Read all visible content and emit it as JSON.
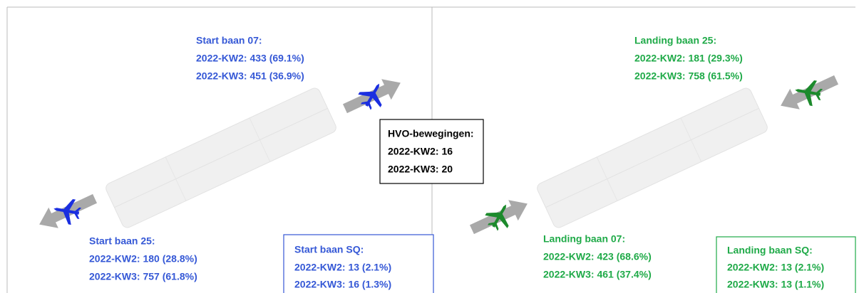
{
  "left": {
    "start_07": {
      "title": "Start baan 07:",
      "lines": [
        "2022-KW2: 433 (69.1%)",
        "2022-KW3: 451 (36.9%)"
      ]
    },
    "start_25": {
      "title": "Start baan 25:",
      "lines": [
        "2022-KW2: 180 (28.8%)",
        "2022-KW3: 757 (61.8%)"
      ]
    },
    "start_sq": {
      "title": "Start baan SQ:",
      "lines": [
        "2022-KW2: 13 (2.1%)",
        "2022-KW3: 16 (1.3%)"
      ]
    }
  },
  "hvo": {
    "title": "HVO-bewegingen:",
    "lines": [
      "2022-KW2: 16",
      "2022-KW3: 20"
    ]
  },
  "right": {
    "landing_25": {
      "title": "Landing baan 25:",
      "lines": [
        "2022-KW2: 181 (29.3%)",
        "2022-KW3: 758 (61.5%)"
      ]
    },
    "landing_07": {
      "title": "Landing baan 07:",
      "lines": [
        "2022-KW2: 423 (68.6%)",
        "2022-KW3: 461 (37.4%)"
      ]
    },
    "landing_sq": {
      "title": "Landing baan SQ:",
      "lines": [
        "2022-KW2: 13 (2.1%)",
        "2022-KW3: 13 (1.1%)"
      ]
    }
  }
}
